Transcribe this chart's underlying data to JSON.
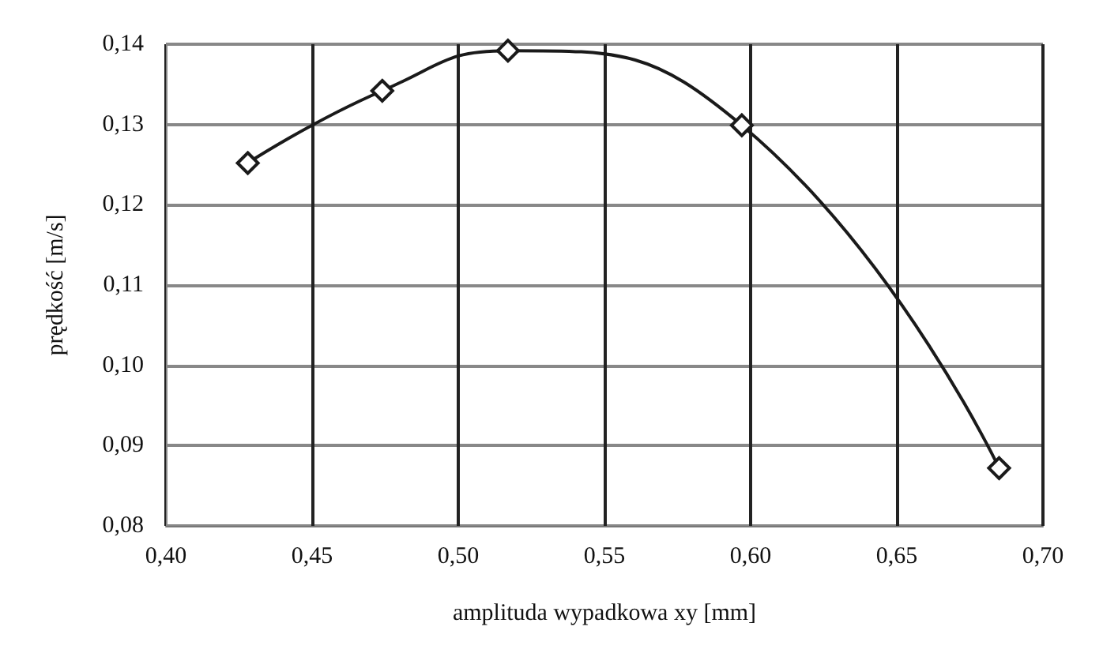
{
  "chart_data": {
    "type": "line",
    "xlabel": "amplituda wypadkowa xy [mm]",
    "ylabel": "prędkość [m/s]",
    "x": [
      0.428,
      0.474,
      0.517,
      0.597,
      0.685
    ],
    "series": [
      {
        "color": "#1a1a1a",
        "values": [
          0.1252,
          0.1342,
          0.1392,
          0.1299,
          0.0872
        ]
      }
    ],
    "xlim": [
      0.4,
      0.7
    ],
    "xticks": [
      {
        "value": 0.4,
        "label": "0,40"
      },
      {
        "value": 0.45,
        "label": "0,45"
      },
      {
        "value": 0.5,
        "label": "0,50"
      },
      {
        "value": 0.55,
        "label": "0,55"
      },
      {
        "value": 0.6,
        "label": "0,60"
      },
      {
        "value": 0.65,
        "label": "0,65"
      },
      {
        "value": 0.7,
        "label": "0,70"
      }
    ],
    "ylim": [
      0.08,
      0.14
    ],
    "yticks": [
      {
        "value": 0.08,
        "label": "0,08"
      },
      {
        "value": 0.09,
        "label": "0,09"
      },
      {
        "value": 0.1,
        "label": "0,10"
      },
      {
        "value": 0.11,
        "label": "0,11"
      },
      {
        "value": 0.12,
        "label": "0,12"
      },
      {
        "value": 0.13,
        "label": "0,13"
      },
      {
        "value": 0.14,
        "label": "0,14"
      }
    ],
    "grid": true,
    "marker": "diamond",
    "line_style": "solid"
  }
}
